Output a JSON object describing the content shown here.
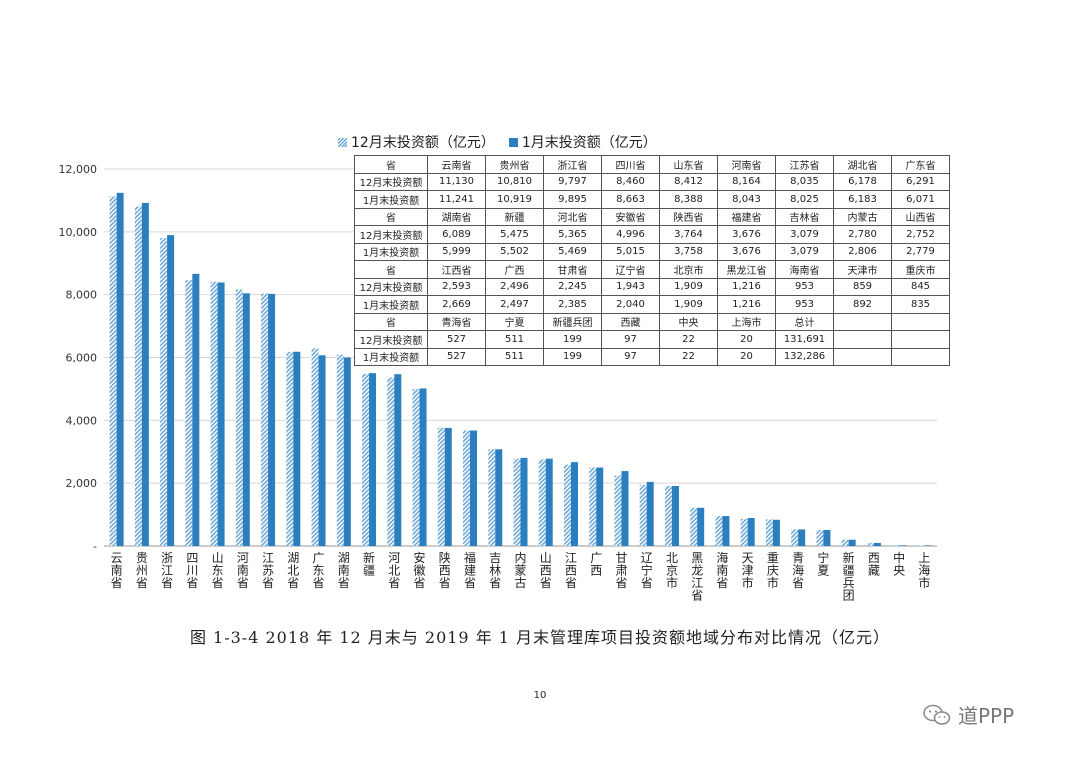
{
  "chart_data": {
    "type": "bar",
    "legend": [
      "12月末投资额（亿元）",
      "1月末投资额（亿元）"
    ],
    "categories": [
      "云南省",
      "贵州省",
      "浙江省",
      "四川省",
      "山东省",
      "河南省",
      "江苏省",
      "湖北省",
      "广东省",
      "湖南省",
      "新疆",
      "河北省",
      "安徽省",
      "陕西省",
      "福建省",
      "吉林省",
      "内蒙古",
      "山西省",
      "江西省",
      "广西",
      "甘肃省",
      "辽宁省",
      "北京市",
      "黑龙江省",
      "海南省",
      "天津市",
      "重庆市",
      "青海省",
      "宁夏",
      "新疆兵团",
      "西藏",
      "中央",
      "上海市"
    ],
    "series": [
      {
        "name": "12月末投资额（亿元）",
        "values": [
          11130,
          10810,
          9797,
          8460,
          8412,
          8164,
          8035,
          6178,
          6291,
          6089,
          5475,
          5365,
          4996,
          3764,
          3676,
          3079,
          2780,
          2752,
          2593,
          2496,
          2245,
          1943,
          1909,
          1216,
          953,
          859,
          845,
          527,
          511,
          199,
          97,
          22,
          20
        ]
      },
      {
        "name": "1月末投资额（亿元）",
        "values": [
          11241,
          10919,
          9895,
          8663,
          8388,
          8043,
          8025,
          6183,
          6071,
          5999,
          5502,
          5469,
          5015,
          3758,
          3676,
          3079,
          2806,
          2779,
          2669,
          2497,
          2385,
          2040,
          1909,
          1216,
          953,
          892,
          835,
          527,
          511,
          199,
          97,
          22,
          20
        ]
      }
    ],
    "yticks": [
      "-",
      "2,000",
      "4,000",
      "6,000",
      "8,000",
      "10,000",
      "12,000"
    ],
    "ylim": [
      0,
      12000
    ],
    "grid": true,
    "colors": {
      "dec": "#6fa8d6",
      "jan": "#2b7fbf"
    }
  },
  "table": [
    {
      "header": [
        "省",
        "云南省",
        "贵州省",
        "浙江省",
        "四川省",
        "山东省",
        "河南省",
        "江苏省",
        "湖北省",
        "广东省"
      ],
      "dec": [
        "12月末投资额",
        "11,130",
        "10,810",
        "9,797",
        "8,460",
        "8,412",
        "8,164",
        "8,035",
        "6,178",
        "6,291"
      ],
      "jan": [
        "1月末投资额",
        "11,241",
        "10,919",
        "9,895",
        "8,663",
        "8,388",
        "8,043",
        "8,025",
        "6,183",
        "6,071"
      ]
    },
    {
      "header": [
        "省",
        "湖南省",
        "新疆",
        "河北省",
        "安徽省",
        "陕西省",
        "福建省",
        "吉林省",
        "内蒙古",
        "山西省"
      ],
      "dec": [
        "12月末投资额",
        "6,089",
        "5,475",
        "5,365",
        "4,996",
        "3,764",
        "3,676",
        "3,079",
        "2,780",
        "2,752"
      ],
      "jan": [
        "1月末投资额",
        "5,999",
        "5,502",
        "5,469",
        "5,015",
        "3,758",
        "3,676",
        "3,079",
        "2,806",
        "2,779"
      ]
    },
    {
      "header": [
        "省",
        "江西省",
        "广西",
        "甘肃省",
        "辽宁省",
        "北京市",
        "黑龙江省",
        "海南省",
        "天津市",
        "重庆市"
      ],
      "dec": [
        "12月末投资额",
        "2,593",
        "2,496",
        "2,245",
        "1,943",
        "1,909",
        "1,216",
        "953",
        "859",
        "845"
      ],
      "jan": [
        "1月末投资额",
        "2,669",
        "2,497",
        "2,385",
        "2,040",
        "1,909",
        "1,216",
        "953",
        "892",
        "835"
      ]
    },
    {
      "header": [
        "省",
        "青海省",
        "宁夏",
        "新疆兵团",
        "西藏",
        "中央",
        "上海市",
        "总计",
        "",
        ""
      ],
      "dec": [
        "12月末投资额",
        "527",
        "511",
        "199",
        "97",
        "22",
        "20",
        "131,691",
        "",
        ""
      ],
      "jan": [
        "1月末投资额",
        "527",
        "511",
        "199",
        "97",
        "22",
        "20",
        "132,286",
        "",
        ""
      ]
    }
  ],
  "caption": "图 1-3-4   2018 年 12 月末与 2019 年 1 月末管理库项目投资额地域分布对比情况（亿元）",
  "page_number": "10",
  "watermark": "道PPP"
}
